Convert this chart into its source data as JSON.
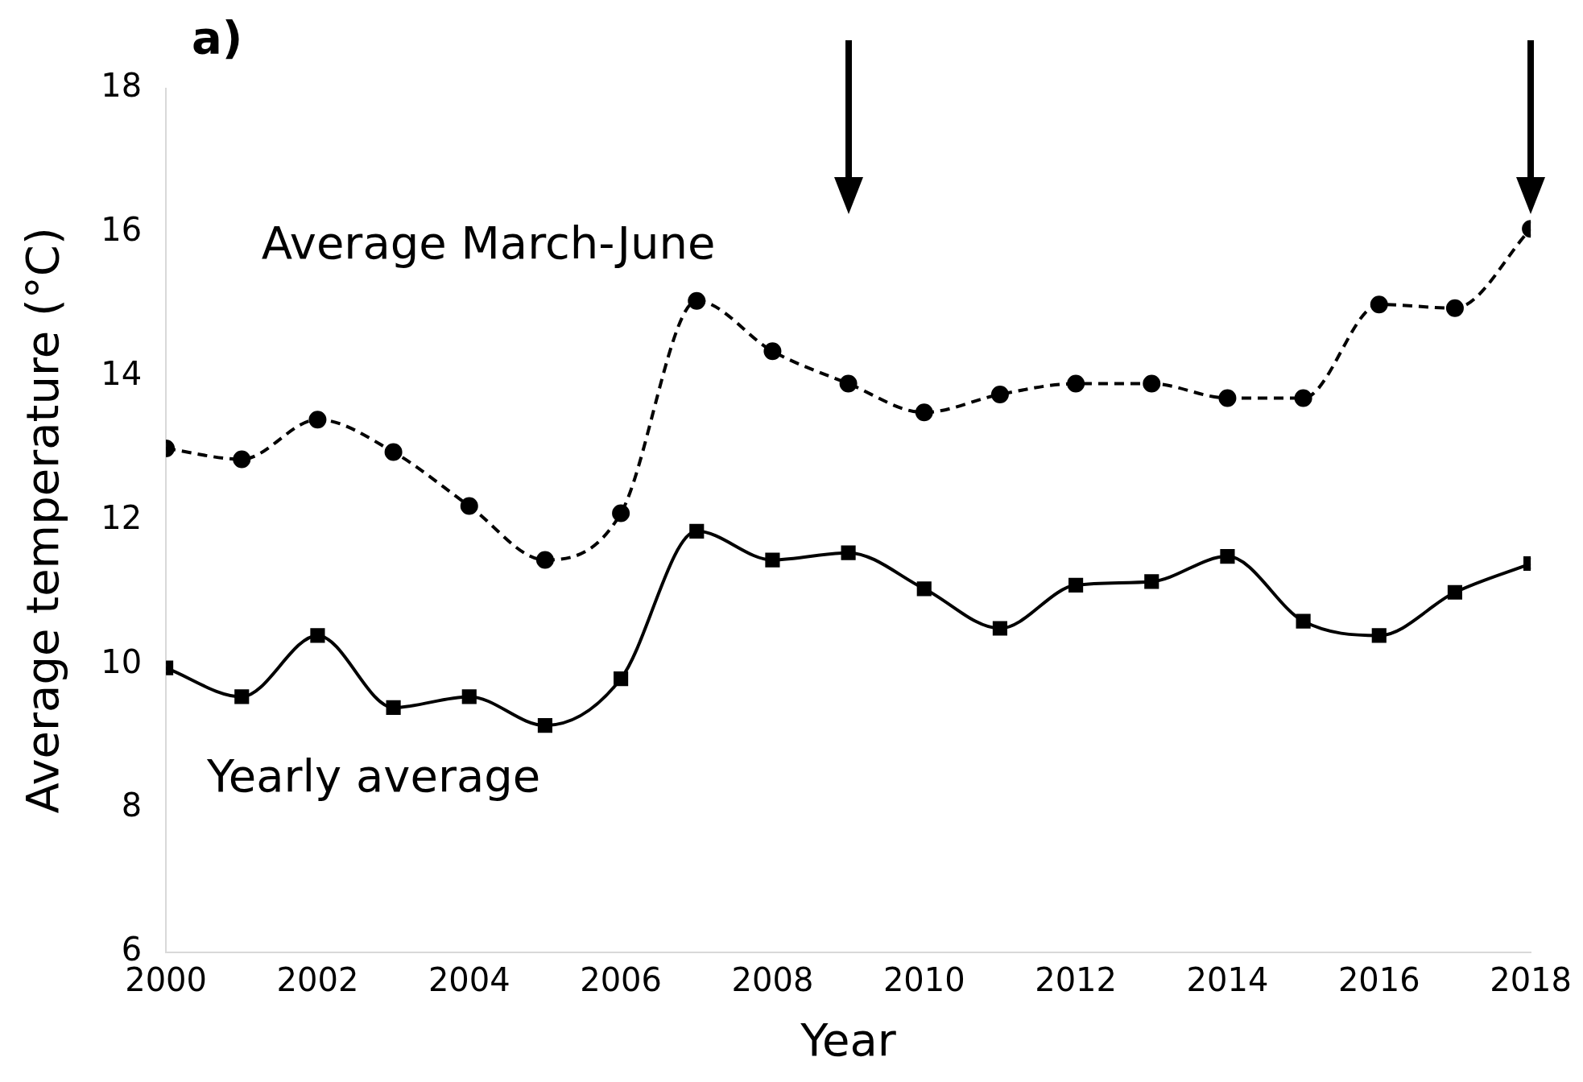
{
  "chart_data": {
    "type": "line",
    "title": "a)",
    "xlabel": "Year",
    "ylabel": "Average temperature (°C)",
    "x": [
      2000,
      2001,
      2002,
      2003,
      2004,
      2005,
      2006,
      2007,
      2008,
      2009,
      2010,
      2011,
      2012,
      2013,
      2014,
      2015,
      2016,
      2017,
      2018
    ],
    "series": [
      {
        "name": "Average March-June",
        "color": "#000000",
        "line_style": "dashed",
        "marker": "circle",
        "values": [
          13.0,
          12.85,
          13.4,
          12.95,
          12.2,
          11.45,
          12.1,
          15.05,
          14.35,
          13.9,
          13.5,
          13.75,
          13.9,
          13.9,
          13.7,
          13.7,
          15.0,
          14.95,
          16.05
        ]
      },
      {
        "name": "Yearly average",
        "color": "#000000",
        "line_style": "solid",
        "marker": "square",
        "values": [
          9.95,
          9.55,
          10.4,
          9.4,
          9.55,
          9.15,
          9.8,
          11.85,
          11.45,
          11.55,
          11.05,
          10.5,
          11.1,
          11.15,
          11.5,
          10.6,
          10.4,
          11.0,
          11.4
        ]
      }
    ],
    "xlim": [
      2000,
      2018
    ],
    "xticks": [
      2000,
      2002,
      2004,
      2006,
      2008,
      2010,
      2012,
      2014,
      2016,
      2018
    ],
    "ylim": [
      6,
      18
    ],
    "yticks": [
      6,
      8,
      10,
      12,
      14,
      16,
      18
    ],
    "grid": false,
    "legend": false
  }
}
